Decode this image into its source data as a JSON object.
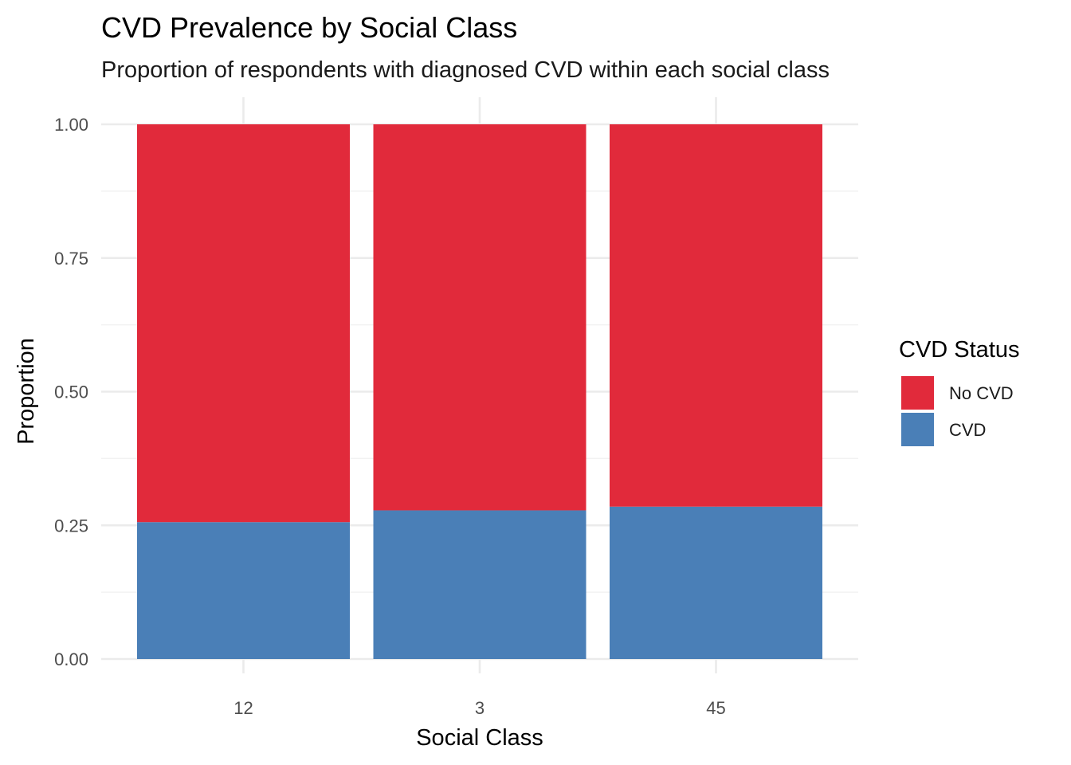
{
  "chart_data": {
    "type": "bar",
    "stacked": true,
    "title": "CVD Prevalence by Social Class",
    "subtitle": "Proportion of respondents with diagnosed CVD within each social class",
    "xlabel": "Social Class",
    "ylabel": "Proportion",
    "categories": [
      "12",
      "3",
      "45"
    ],
    "series": [
      {
        "name": "CVD",
        "color": "#4a7fb7",
        "values": [
          0.256,
          0.278,
          0.285
        ]
      },
      {
        "name": "No CVD",
        "color": "#e12a3b",
        "values": [
          0.744,
          0.722,
          0.715
        ]
      }
    ],
    "ylim": [
      0,
      1
    ],
    "y_ticks": [
      "0.00",
      "0.25",
      "0.50",
      "0.75",
      "1.00"
    ],
    "grid": true,
    "legend": {
      "title": "CVD Status",
      "position": "right",
      "entries": [
        {
          "label": "No CVD",
          "color": "#e12a3b"
        },
        {
          "label": "CVD",
          "color": "#4a7fb7"
        }
      ]
    }
  }
}
